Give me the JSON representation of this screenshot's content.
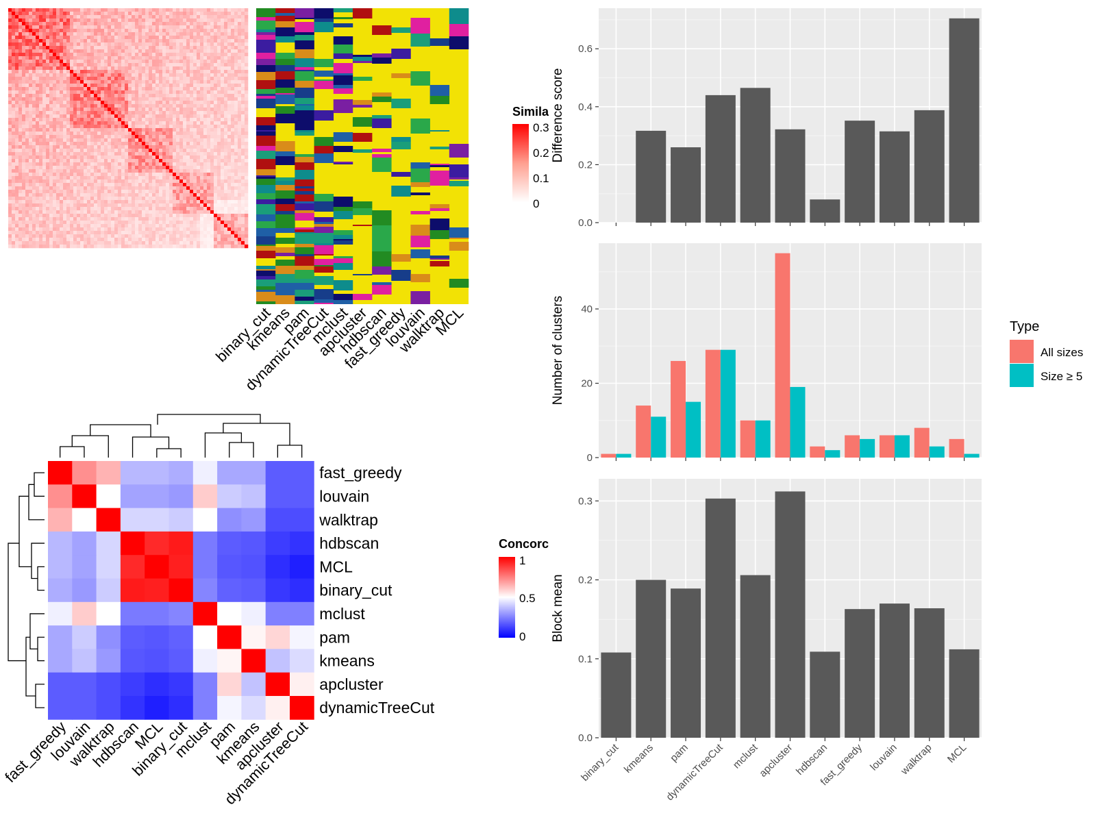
{
  "colors": {
    "panel_bg": "#ebebeb",
    "grid_major": "#ffffff",
    "bar": "#595959",
    "all_sizes": "#f8766d",
    "size_ge_5": "#00bfc4",
    "heat_high": "#ff0000",
    "heat_mid": "#ffffff",
    "heat_low": "#0000ff",
    "membership_bg": "#f2e205"
  },
  "similarity_heatmap": {
    "legend_title": "Simila",
    "legend_ticks": [
      "0.3",
      "0.2",
      "0.1",
      "0"
    ]
  },
  "membership_heatmap": {
    "columns": [
      "binary_cut",
      "kmeans",
      "pam",
      "dynamicTreeCut",
      "mclust",
      "apcluster",
      "hdbscan",
      "fast_greedy",
      "louvain",
      "walktrap",
      "MCL"
    ]
  },
  "concordance": {
    "legend_title": "Concorc",
    "legend_ticks": [
      "1",
      "0.5",
      "0"
    ],
    "row_labels": [
      "fast_greedy",
      "louvain",
      "walktrap",
      "hdbscan",
      "MCL",
      "binary_cut",
      "mclust",
      "pam",
      "kmeans",
      "apcluster",
      "dynamicTreeCut"
    ],
    "col_labels": [
      "fast_greedy",
      "louvain",
      "walktrap",
      "hdbscan",
      "MCL",
      "binary_cut",
      "mclust",
      "pam",
      "kmeans",
      "apcluster",
      "dynamicTreeCut"
    ],
    "matrix": [
      [
        1.0,
        0.72,
        0.65,
        0.36,
        0.36,
        0.34,
        0.47,
        0.33,
        0.33,
        0.18,
        0.18
      ],
      [
        0.72,
        1.0,
        0.5,
        0.32,
        0.32,
        0.3,
        0.6,
        0.4,
        0.38,
        0.18,
        0.18
      ],
      [
        0.65,
        0.5,
        1.0,
        0.42,
        0.42,
        0.4,
        0.5,
        0.28,
        0.3,
        0.15,
        0.15
      ],
      [
        0.36,
        0.32,
        0.42,
        1.0,
        0.92,
        0.95,
        0.24,
        0.18,
        0.17,
        0.12,
        0.1
      ],
      [
        0.36,
        0.32,
        0.42,
        0.92,
        1.0,
        0.94,
        0.24,
        0.17,
        0.16,
        0.09,
        0.06
      ],
      [
        0.34,
        0.3,
        0.4,
        0.95,
        0.94,
        1.0,
        0.26,
        0.19,
        0.18,
        0.11,
        0.09
      ],
      [
        0.47,
        0.6,
        0.5,
        0.24,
        0.24,
        0.26,
        1.0,
        0.5,
        0.47,
        0.25,
        0.25
      ],
      [
        0.33,
        0.4,
        0.28,
        0.18,
        0.17,
        0.19,
        0.5,
        1.0,
        0.52,
        0.58,
        0.48
      ],
      [
        0.33,
        0.38,
        0.3,
        0.17,
        0.16,
        0.18,
        0.47,
        0.52,
        1.0,
        0.38,
        0.43
      ],
      [
        0.18,
        0.18,
        0.15,
        0.12,
        0.09,
        0.11,
        0.25,
        0.58,
        0.38,
        1.0,
        0.53
      ],
      [
        0.18,
        0.18,
        0.15,
        0.1,
        0.06,
        0.09,
        0.25,
        0.48,
        0.43,
        0.53,
        1.0
      ]
    ]
  },
  "chart_data": [
    {
      "type": "bar",
      "categories": [
        "binary_cut",
        "kmeans",
        "pam",
        "dynamicTreeCut",
        "mclust",
        "apcluster",
        "hdbscan",
        "fast_greedy",
        "louvain",
        "walktrap",
        "MCL"
      ],
      "values": [
        0.0,
        0.317,
        0.26,
        0.44,
        0.465,
        0.322,
        0.08,
        0.352,
        0.315,
        0.388,
        0.705
      ],
      "ylabel": "Difference score",
      "ylim": [
        0,
        0.74
      ],
      "yticks": [
        "0.0",
        "0.2",
        "0.4",
        "0.6"
      ],
      "grid": true
    },
    {
      "type": "bar",
      "categories": [
        "binary_cut",
        "kmeans",
        "pam",
        "dynamicTreeCut",
        "mclust",
        "apcluster",
        "hdbscan",
        "fast_greedy",
        "louvain",
        "walktrap",
        "MCL"
      ],
      "series": [
        {
          "name": "All sizes",
          "values": [
            1,
            14,
            26,
            29,
            10,
            55,
            3,
            6,
            6,
            8,
            5
          ]
        },
        {
          "name": "Size ≥ 5",
          "values": [
            1,
            11,
            15,
            29,
            10,
            19,
            2,
            5,
            6,
            3,
            1
          ]
        }
      ],
      "ylabel": "Number of clusters",
      "ylim": [
        0,
        57.7
      ],
      "yticks": [
        "0",
        "20",
        "40"
      ],
      "legend_title": "Type",
      "legend_position": "right",
      "grid": true
    },
    {
      "type": "bar",
      "categories": [
        "binary_cut",
        "kmeans",
        "pam",
        "dynamicTreeCut",
        "mclust",
        "apcluster",
        "hdbscan",
        "fast_greedy",
        "louvain",
        "walktrap",
        "MCL"
      ],
      "values": [
        0.108,
        0.2,
        0.189,
        0.303,
        0.206,
        0.312,
        0.109,
        0.163,
        0.17,
        0.164,
        0.112
      ],
      "ylabel": "Block mean",
      "ylim": [
        0,
        0.328
      ],
      "yticks": [
        "0.0",
        "0.1",
        "0.2",
        "0.3"
      ],
      "grid": true
    }
  ]
}
